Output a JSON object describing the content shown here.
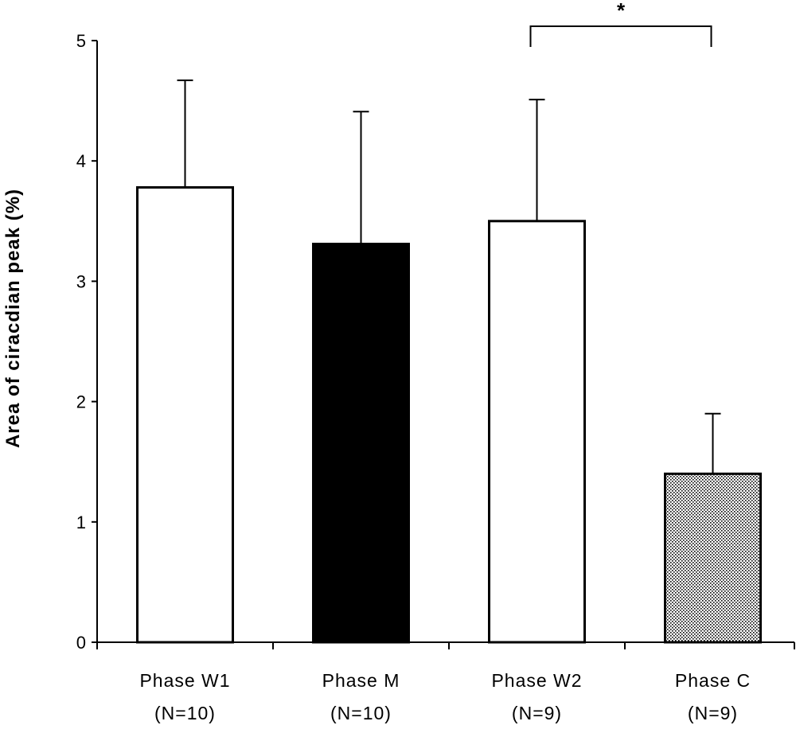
{
  "chart_data": {
    "type": "bar",
    "title": "",
    "xlabel": "",
    "ylabel": "Area of ciracdian peak (%)",
    "ylim": [
      0,
      5
    ],
    "yticks": [
      0,
      1,
      2,
      3,
      4,
      5
    ],
    "categories": [
      "Phase W1",
      "Phase M",
      "Phase W2",
      "Phase C"
    ],
    "sample_sizes": [
      "(N=10)",
      "(N=10)",
      "(N=9)",
      "(N=9)"
    ],
    "values": [
      3.78,
      3.31,
      3.5,
      1.4
    ],
    "error_upper": [
      4.67,
      4.41,
      4.51,
      1.9
    ],
    "bar_fills": [
      "white",
      "black",
      "white",
      "dotted"
    ],
    "significance": {
      "from": "Phase W2",
      "to": "Phase C",
      "label": "*"
    },
    "colors": {
      "axis": "#000000",
      "white_bar": "#ffffff",
      "black_bar": "#000000",
      "dot": "#000000"
    }
  }
}
